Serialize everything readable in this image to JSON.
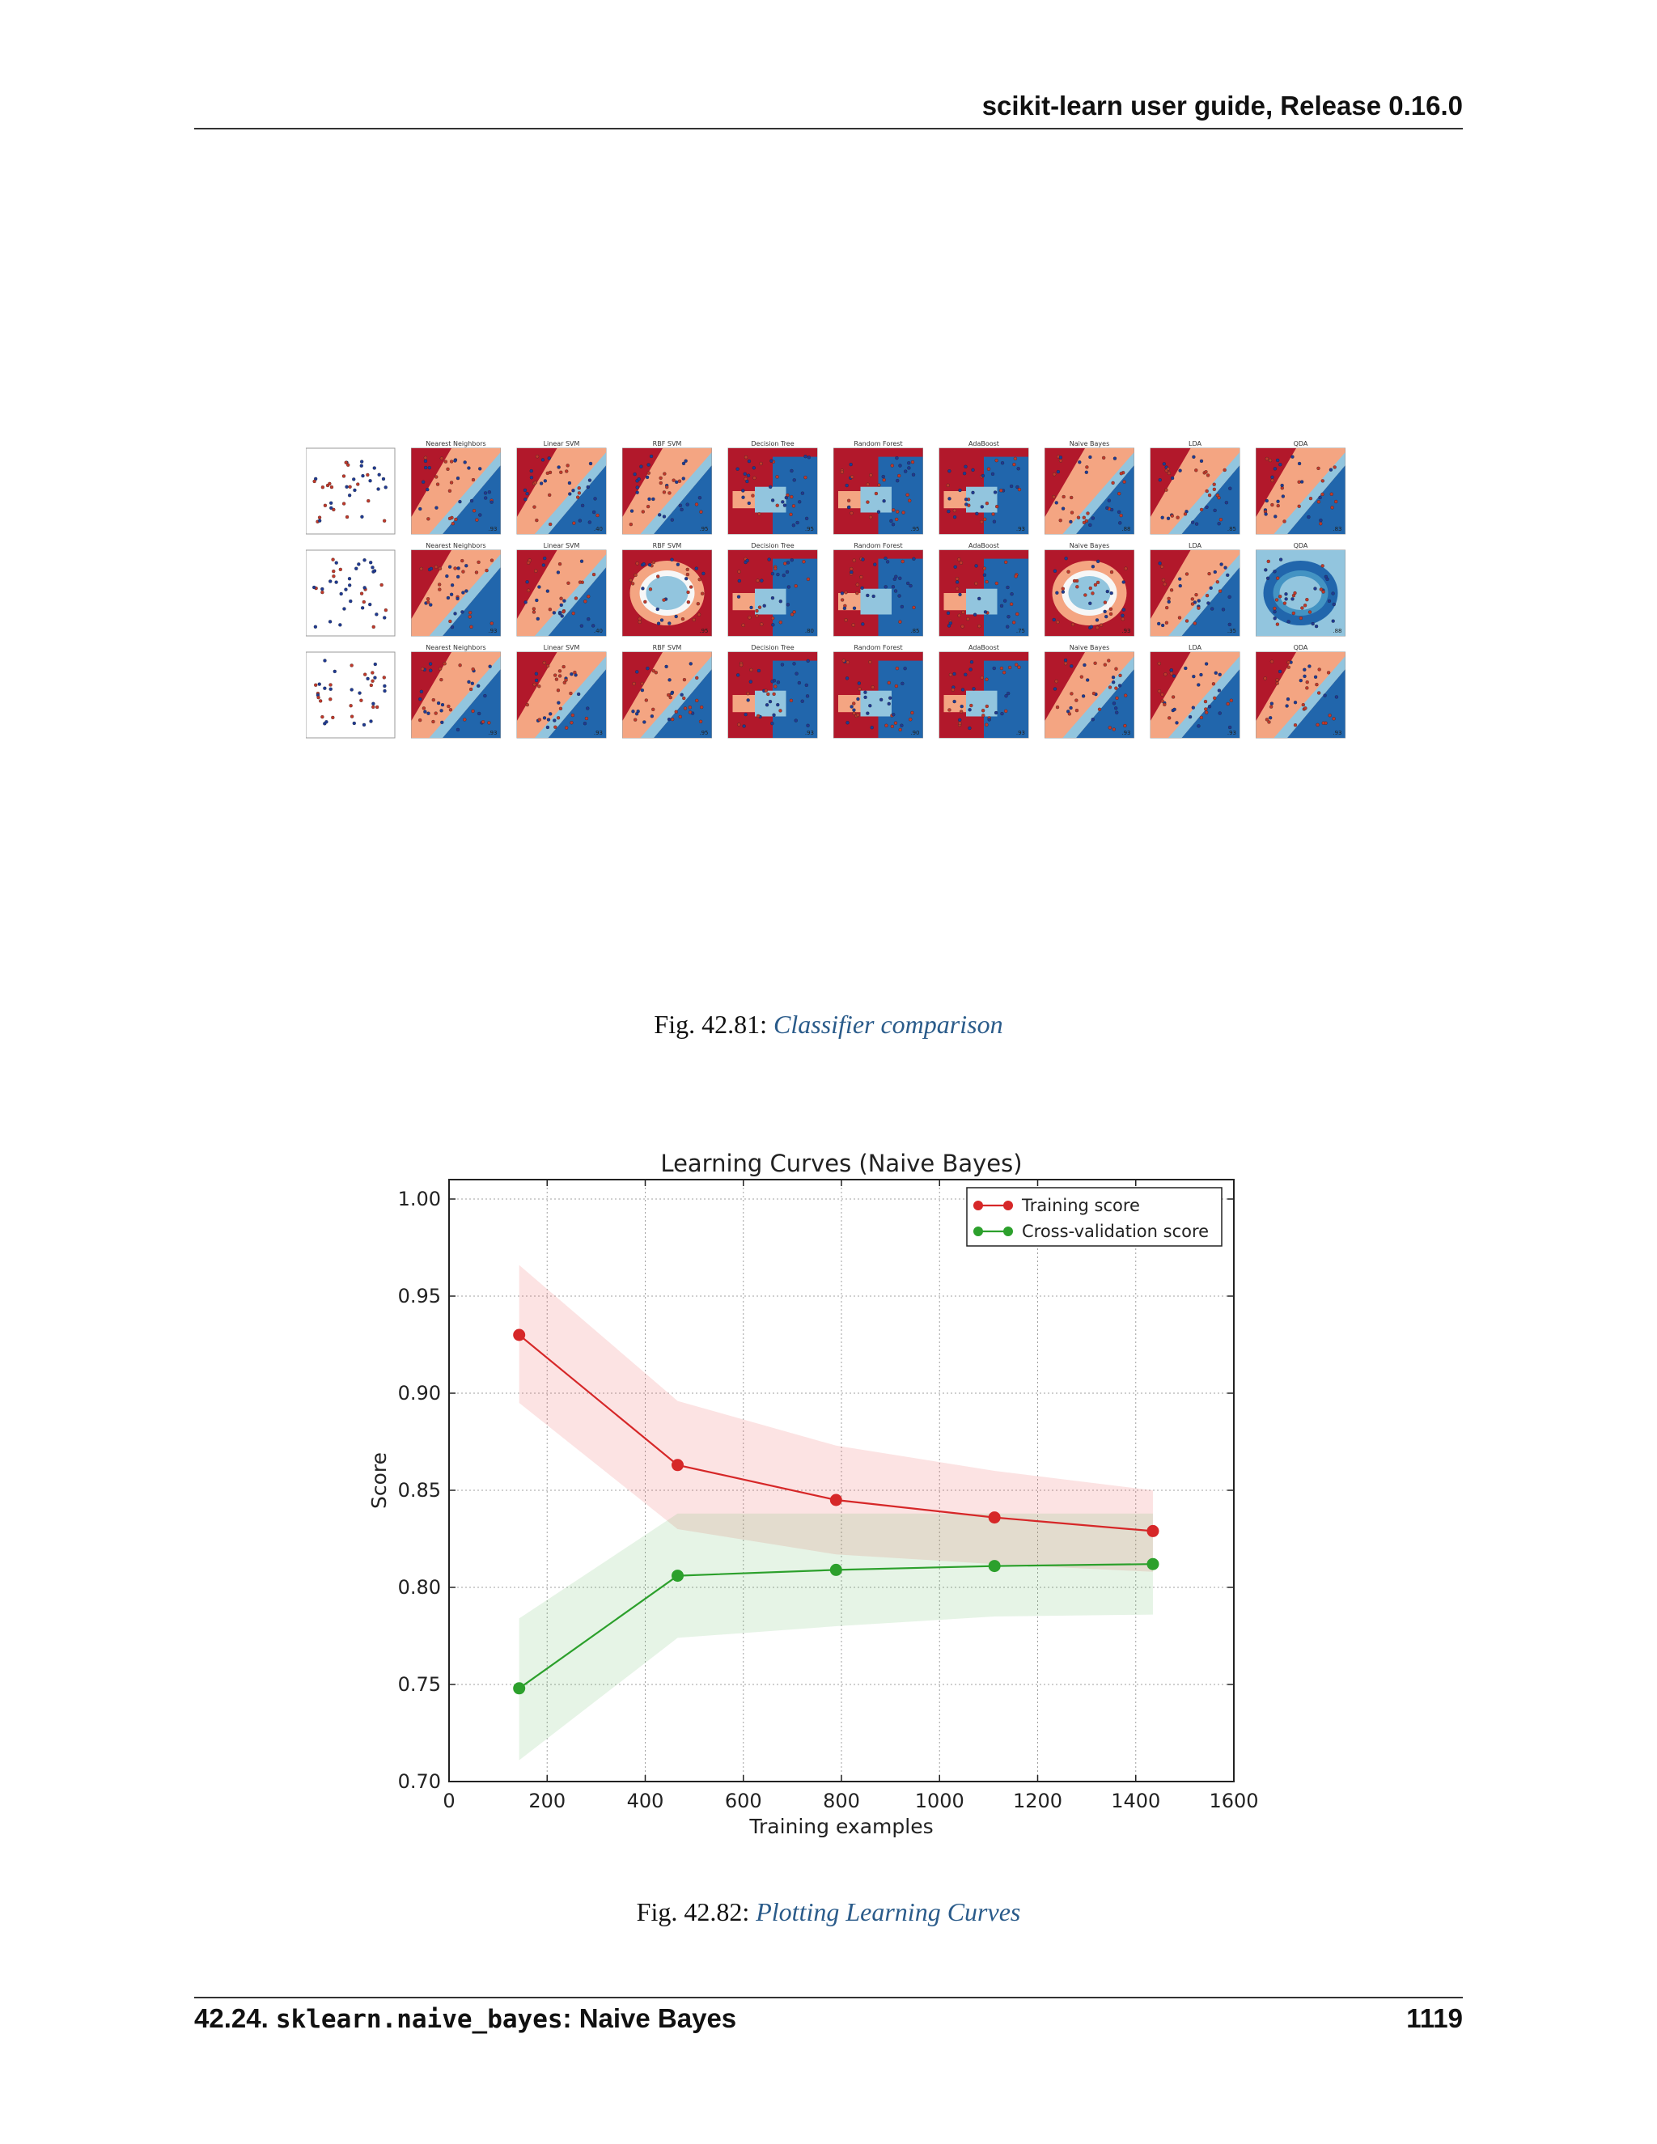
{
  "header": {
    "title": "scikit-learn user guide, Release 0.16.0"
  },
  "figure1": {
    "subplot_titles": [
      "",
      "Nearest Neighbors",
      "Linear SVM",
      "RBF SVM",
      "Decision Tree",
      "Random Forest",
      "AdaBoost",
      "Naive Bayes",
      "LDA",
      "QDA"
    ],
    "rows": [
      {
        "scores": [
          "",
          ".93",
          ".40",
          ".95",
          ".95",
          ".95",
          ".93",
          ".88",
          ".85",
          ".83"
        ]
      },
      {
        "scores": [
          "",
          ".93",
          ".40",
          ".95",
          ".80",
          ".85",
          ".75",
          ".93",
          ".35",
          ".88"
        ]
      },
      {
        "scores": [
          "",
          ".93",
          ".93",
          ".95",
          ".93",
          ".90",
          ".93",
          ".93",
          ".93",
          ".93"
        ]
      }
    ]
  },
  "caption1": {
    "prefix": "Fig.  42.81: ",
    "link": "Classifier comparison"
  },
  "chart_data": {
    "type": "line",
    "title": "Learning Curves (Naive Bayes)",
    "xlabel": "Training examples",
    "ylabel": "Score",
    "xlim": [
      0,
      1600
    ],
    "ylim": [
      0.7,
      1.01
    ],
    "xticks": [
      "0",
      "200",
      "400",
      "600",
      "800",
      "1000",
      "1200",
      "1400",
      "1600"
    ],
    "yticks": [
      "0.70",
      "0.75",
      "0.80",
      "0.85",
      "0.90",
      "0.95",
      "1.00"
    ],
    "grid": true,
    "legend_position": "top-right",
    "x": [
      143,
      466,
      789,
      1112,
      1435
    ],
    "series": [
      {
        "name": "Training score",
        "color": "#d62728",
        "values": [
          0.93,
          0.863,
          0.845,
          0.836,
          0.829
        ],
        "band_upper": [
          0.966,
          0.896,
          0.873,
          0.86,
          0.85
        ],
        "band_lower": [
          0.895,
          0.83,
          0.817,
          0.812,
          0.808
        ]
      },
      {
        "name": "Cross-validation score",
        "color": "#2ca02c",
        "values": [
          0.748,
          0.806,
          0.809,
          0.811,
          0.812
        ],
        "band_upper": [
          0.784,
          0.838,
          0.838,
          0.838,
          0.838
        ],
        "band_lower": [
          0.711,
          0.774,
          0.78,
          0.785,
          0.786
        ]
      }
    ]
  },
  "caption2": {
    "prefix": "Fig.  42.82: ",
    "link": "Plotting Learning Curves"
  },
  "footer": {
    "section": "42.24. ",
    "module": "sklearn.naive_bayes",
    "suffix": ": Naive Bayes",
    "page": "1119"
  }
}
